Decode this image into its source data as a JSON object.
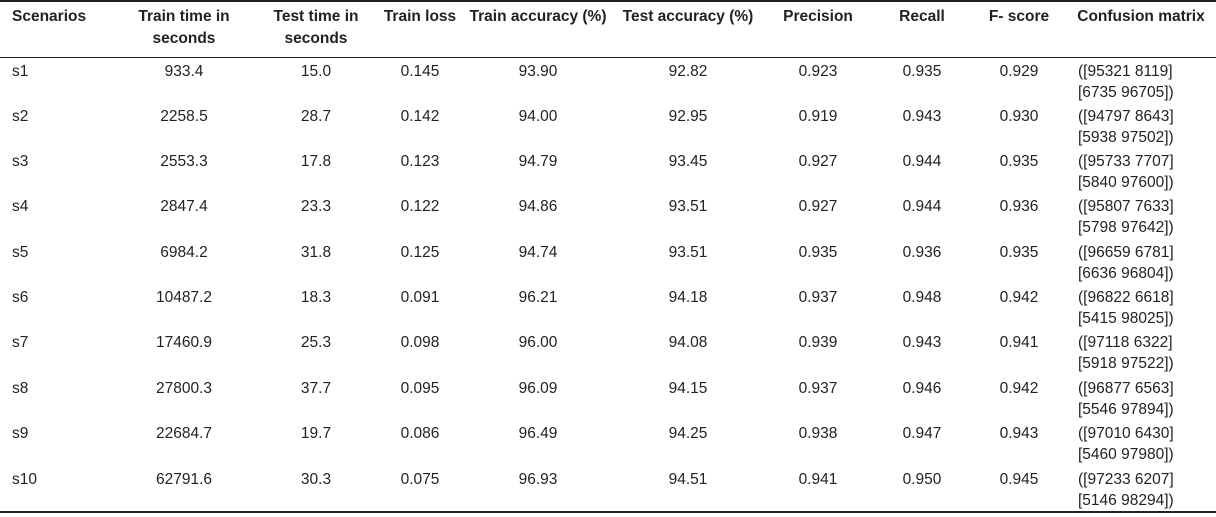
{
  "headers": [
    "Scenarios",
    "Train time in seconds",
    "Test time in seconds",
    "Train loss",
    "Train accuracy (%)",
    "Test accuracy (%)",
    "Precision",
    "Recall",
    "F- score",
    "Confusion matrix"
  ],
  "rows": [
    {
      "scenario": "s1",
      "train_time": "933.4",
      "test_time": "15.0",
      "train_loss": "0.145",
      "train_acc": "93.90",
      "test_acc": "92.82",
      "precision": "0.923",
      "recall": "0.935",
      "fscore": "0.929",
      "cm_line1": "([95321 8119]",
      "cm_line2": "[6735 96705])"
    },
    {
      "scenario": "s2",
      "train_time": "2258.5",
      "test_time": "28.7",
      "train_loss": "0.142",
      "train_acc": "94.00",
      "test_acc": "92.95",
      "precision": "0.919",
      "recall": "0.943",
      "fscore": "0.930",
      "cm_line1": "([94797 8643]",
      "cm_line2": "[5938 97502])"
    },
    {
      "scenario": "s3",
      "train_time": "2553.3",
      "test_time": "17.8",
      "train_loss": "0.123",
      "train_acc": "94.79",
      "test_acc": "93.45",
      "precision": "0.927",
      "recall": "0.944",
      "fscore": "0.935",
      "cm_line1": "([95733 7707]",
      "cm_line2": "[5840 97600])"
    },
    {
      "scenario": "s4",
      "train_time": "2847.4",
      "test_time": "23.3",
      "train_loss": "0.122",
      "train_acc": "94.86",
      "test_acc": "93.51",
      "precision": "0.927",
      "recall": "0.944",
      "fscore": "0.936",
      "cm_line1": "([95807 7633]",
      "cm_line2": "[5798 97642])"
    },
    {
      "scenario": "s5",
      "train_time": "6984.2",
      "test_time": "31.8",
      "train_loss": "0.125",
      "train_acc": "94.74",
      "test_acc": "93.51",
      "precision": "0.935",
      "recall": "0.936",
      "fscore": "0.935",
      "cm_line1": "([96659 6781]",
      "cm_line2": "[6636 96804])"
    },
    {
      "scenario": "s6",
      "train_time": "10487.2",
      "test_time": "18.3",
      "train_loss": "0.091",
      "train_acc": "96.21",
      "test_acc": "94.18",
      "precision": "0.937",
      "recall": "0.948",
      "fscore": "0.942",
      "cm_line1": "([96822 6618]",
      "cm_line2": "[5415 98025])"
    },
    {
      "scenario": "s7",
      "train_time": "17460.9",
      "test_time": "25.3",
      "train_loss": "0.098",
      "train_acc": "96.00",
      "test_acc": "94.08",
      "precision": "0.939",
      "recall": "0.943",
      "fscore": "0.941",
      "cm_line1": "([97118 6322]",
      "cm_line2": "[5918 97522])"
    },
    {
      "scenario": "s8",
      "train_time": "27800.3",
      "test_time": "37.7",
      "train_loss": "0.095",
      "train_acc": "96.09",
      "test_acc": "94.15",
      "precision": "0.937",
      "recall": "0.946",
      "fscore": "0.942",
      "cm_line1": "([96877 6563]",
      "cm_line2": "[5546 97894])"
    },
    {
      "scenario": "s9",
      "train_time": "22684.7",
      "test_time": "19.7",
      "train_loss": "0.086",
      "train_acc": "96.49",
      "test_acc": "94.25",
      "precision": "0.938",
      "recall": "0.947",
      "fscore": "0.943",
      "cm_line1": "([97010 6430]",
      "cm_line2": "[5460 97980])"
    },
    {
      "scenario": "s10",
      "train_time": "62791.6",
      "test_time": "30.3",
      "train_loss": "0.075",
      "train_acc": "96.93",
      "test_acc": "94.51",
      "precision": "0.941",
      "recall": "0.950",
      "fscore": "0.945",
      "cm_line1": "([97233 6207]",
      "cm_line2": "[5146 98294])"
    }
  ]
}
